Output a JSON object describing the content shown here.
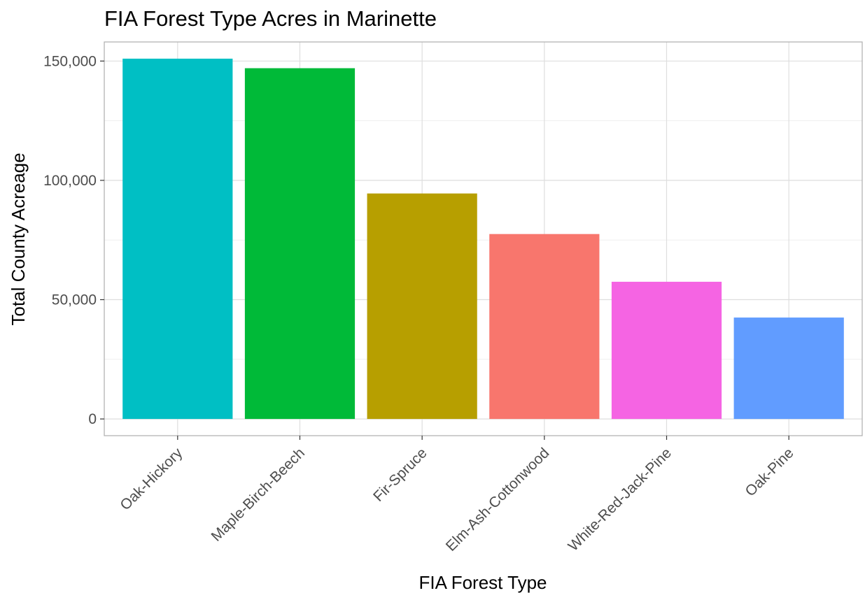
{
  "chart_data": {
    "type": "bar",
    "title": "FIA Forest Type Acres in Marinette",
    "xlabel": "FIA Forest Type",
    "ylabel": "Total County Acreage",
    "categories": [
      "Oak-Hickory",
      "Maple-Birch-Beech",
      "Fir-Spruce",
      "Elm-Ash-Cottonwood",
      "White-Red-Jack-Pine",
      "Oak-Pine"
    ],
    "values": [
      151000,
      147000,
      94500,
      77500,
      57500,
      42500
    ],
    "colors": [
      "#00BFC4",
      "#00BA38",
      "#B79F00",
      "#F8766D",
      "#F564E3",
      "#619CFF"
    ],
    "ylim": [
      -7000,
      158000
    ],
    "yticks": [
      0,
      50000,
      100000,
      150000
    ],
    "ytick_labels": [
      "0",
      "50,000",
      "100,000",
      "150,000"
    ],
    "grid": true,
    "legend": "none"
  }
}
